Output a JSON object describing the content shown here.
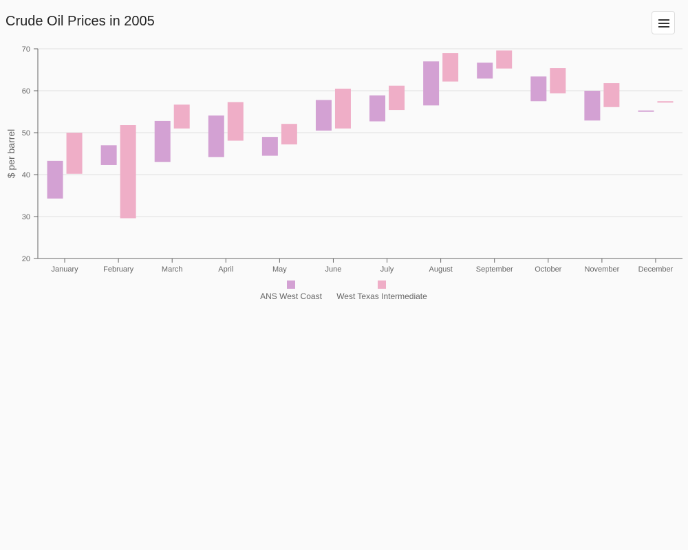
{
  "header": {
    "title": "Crude Oil Prices in 2005",
    "menu_icon": "hamburger-menu-icon"
  },
  "colors": {
    "ans": "#d3a1d3",
    "wti": "#efaec7",
    "grid": "#e0e0e0",
    "axis": "#666666"
  },
  "chart_data": {
    "type": "bar",
    "subtype": "floating-range",
    "title": "Crude Oil Prices in 2005",
    "xlabel": "",
    "ylabel": "$ per barrel",
    "ylim": [
      20,
      70
    ],
    "yticks": [
      20,
      30,
      40,
      50,
      60,
      70
    ],
    "grid": true,
    "legend_position": "bottom",
    "categories": [
      "January",
      "February",
      "March",
      "April",
      "May",
      "June",
      "July",
      "August",
      "September",
      "October",
      "November",
      "December"
    ],
    "series": [
      {
        "name": "ANS West Coast",
        "color": "#d3a1d3",
        "ranges": [
          [
            34.3,
            43.3
          ],
          [
            42.3,
            47.0
          ],
          [
            43.0,
            52.8
          ],
          [
            44.2,
            54.1
          ],
          [
            44.5,
            49.0
          ],
          [
            50.5,
            57.8
          ],
          [
            52.7,
            58.9
          ],
          [
            56.5,
            67.0
          ],
          [
            62.9,
            66.7
          ],
          [
            57.5,
            63.4
          ],
          [
            52.9,
            60.0
          ],
          [
            55.1,
            55.3
          ]
        ]
      },
      {
        "name": "West Texas Intermediate",
        "color": "#efaec7",
        "ranges": [
          [
            40.2,
            50.0
          ],
          [
            29.6,
            51.8
          ],
          [
            51.0,
            56.7
          ],
          [
            48.1,
            57.3
          ],
          [
            47.2,
            52.1
          ],
          [
            51.0,
            60.5
          ],
          [
            55.4,
            61.2
          ],
          [
            62.2,
            69.0
          ],
          [
            65.3,
            69.6
          ],
          [
            59.4,
            65.4
          ],
          [
            56.1,
            61.8
          ],
          [
            57.3,
            57.5
          ]
        ]
      }
    ]
  }
}
